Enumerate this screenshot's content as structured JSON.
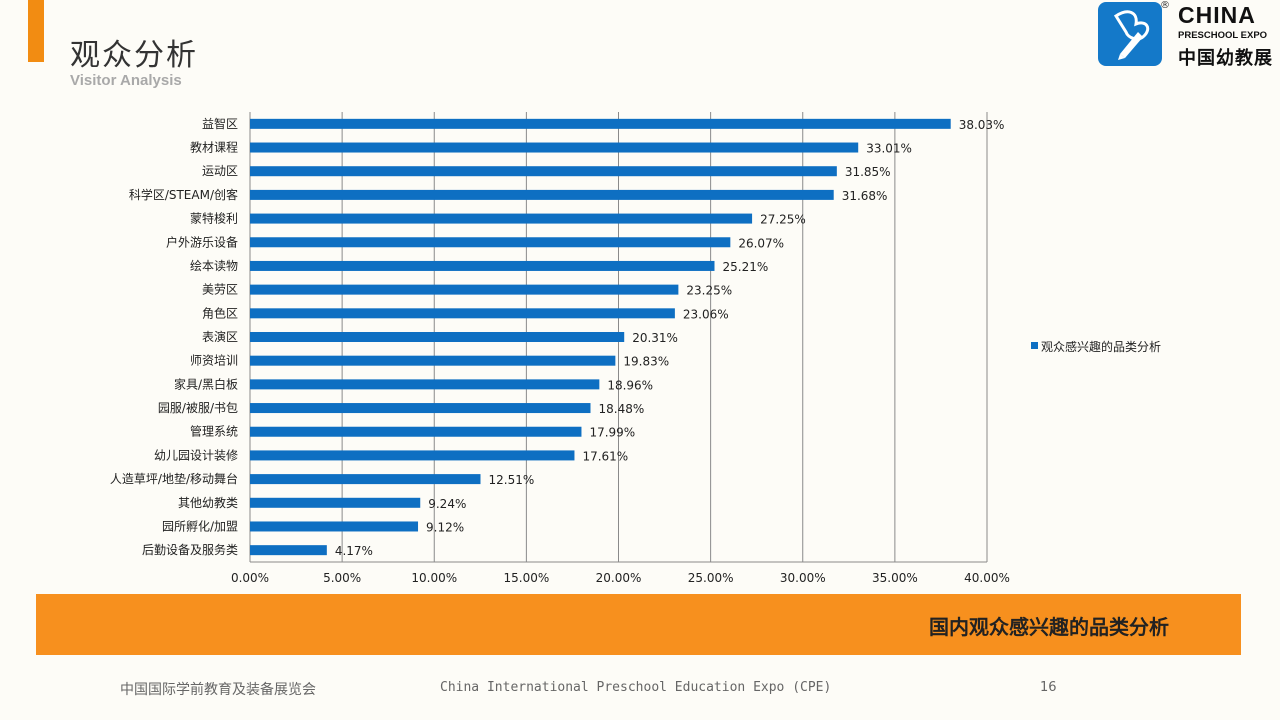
{
  "header": {
    "title": "观众分析",
    "subtitle": "Visitor Analysis",
    "accent_color": "#f28c12"
  },
  "logo": {
    "icon": "pencil-butterfly-logo-icon",
    "reg": "®",
    "en_name": "CHINA",
    "en_sub": "PRESCHOOL EXPO",
    "cn_name": "中国幼教展",
    "color": "#1479c9"
  },
  "chart_data": {
    "type": "bar",
    "orientation": "horizontal",
    "categories": [
      "益智区",
      "教材课程",
      "运动区",
      "科学区/STEAM/创客",
      "蒙特梭利",
      "户外游乐设备",
      "绘本读物",
      "美劳区",
      "角色区",
      "表演区",
      "师资培训",
      "家具/黑白板",
      "园服/被服/书包",
      "管理系统",
      "幼儿园设计装修",
      "人造草坪/地垫/移动舞台",
      "其他幼教类",
      "园所孵化/加盟",
      "后勤设备及服务类"
    ],
    "series": [
      {
        "name": "观众感兴趣的品类分析",
        "values": [
          38.03,
          33.01,
          31.85,
          31.68,
          27.25,
          26.07,
          25.21,
          23.25,
          23.06,
          20.31,
          19.83,
          18.96,
          18.48,
          17.99,
          17.61,
          12.51,
          9.24,
          9.12,
          4.17
        ],
        "labels": [
          "38.03%",
          "33.01%",
          "31.85%",
          "31.68%",
          "27.25%",
          "26.07%",
          "25.21%",
          "23.25%",
          "23.06%",
          "20.31%",
          "19.83%",
          "18.96%",
          "18.48%",
          "17.99%",
          "17.61%",
          "12.51%",
          "9.24%",
          "9.12%",
          "4.17%"
        ],
        "color": "#0e6fc2"
      }
    ],
    "x_ticks": [
      "0.00%",
      "5.00%",
      "10.00%",
      "15.00%",
      "20.00%",
      "25.00%",
      "30.00%",
      "35.00%",
      "40.00%"
    ],
    "xlim": [
      0,
      40
    ],
    "grid": "vertical",
    "legend_position": "right"
  },
  "banner": {
    "text": "国内观众感兴趣的品类分析",
    "color": "#f7901e"
  },
  "footer": {
    "cn": "中国国际学前教育及装备展览会",
    "en": "China International Preschool Education Expo (CPE)",
    "page": "16"
  }
}
